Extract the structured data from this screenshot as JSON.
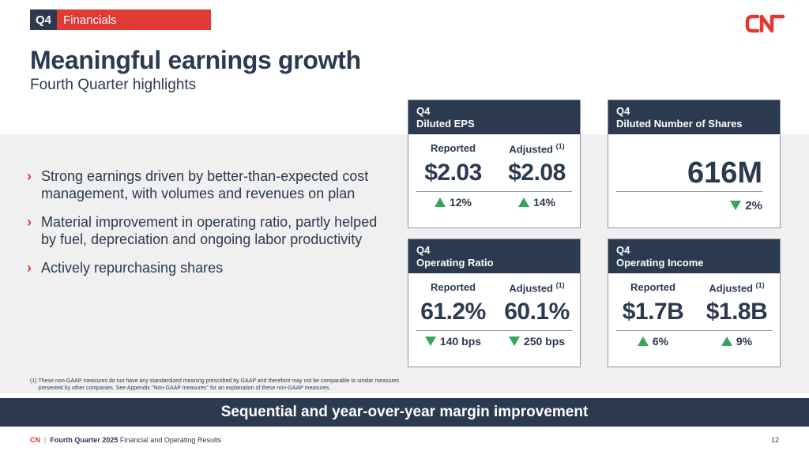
{
  "tag": {
    "quarter": "Q4",
    "section": "Financials"
  },
  "logo": {
    "text": "CN",
    "color": "#e03a34"
  },
  "title": "Meaningful earnings growth",
  "subtitle": "Fourth Quarter highlights",
  "bullets": [
    "Strong earnings driven by better-than-expected cost management, with volumes and revenues on plan",
    "Material improvement in operating ratio, partly helped by fuel, depreciation and ongoing labor productivity",
    "Actively repurchasing shares"
  ],
  "cards": {
    "eps": {
      "q": "Q4",
      "title": "Diluted EPS",
      "reported_label": "Reported",
      "adjusted_label": "Adjusted",
      "adjusted_note": "(1)",
      "reported": "$2.03",
      "adjusted": "$2.08",
      "reported_change": "12%",
      "adjusted_change": "14%"
    },
    "shares": {
      "q": "Q4",
      "title": "Diluted Number of Shares",
      "value": "616M",
      "change": "2%"
    },
    "ratio": {
      "q": "Q4",
      "title": "Operating Ratio",
      "reported_label": "Reported",
      "adjusted_label": "Adjusted",
      "adjusted_note": "(1)",
      "reported": "61.2%",
      "adjusted": "60.1%",
      "reported_change": "140 bps",
      "adjusted_change": "250 bps"
    },
    "income": {
      "q": "Q4",
      "title": "Operating Income",
      "reported_label": "Reported",
      "adjusted_label": "Adjusted",
      "adjusted_note": "(1)",
      "reported": "$1.7B",
      "adjusted": "$1.8B",
      "reported_change": "6%",
      "adjusted_change": "9%"
    }
  },
  "footnote": {
    "num": "(1)",
    "text": "These non-GAAP measures do not have any standardized meaning prescribed by GAAP and therefore may not be comparable to similar measures presented by other companies. See Appendix \"Non-GAAP measures\" for an explanation of these non-GAAP measures."
  },
  "banner": "Sequential and year-over-year margin improvement",
  "footer": {
    "brand": "CN",
    "sep": "|",
    "doc_bold": "Fourth Quarter 2025",
    "doc_rest": " Financial and Operating Results",
    "page": "12"
  },
  "colors": {
    "navy": "#2b3a4f",
    "red": "#e03a34",
    "green": "#3aa35b",
    "band": "#f0f0f0"
  }
}
